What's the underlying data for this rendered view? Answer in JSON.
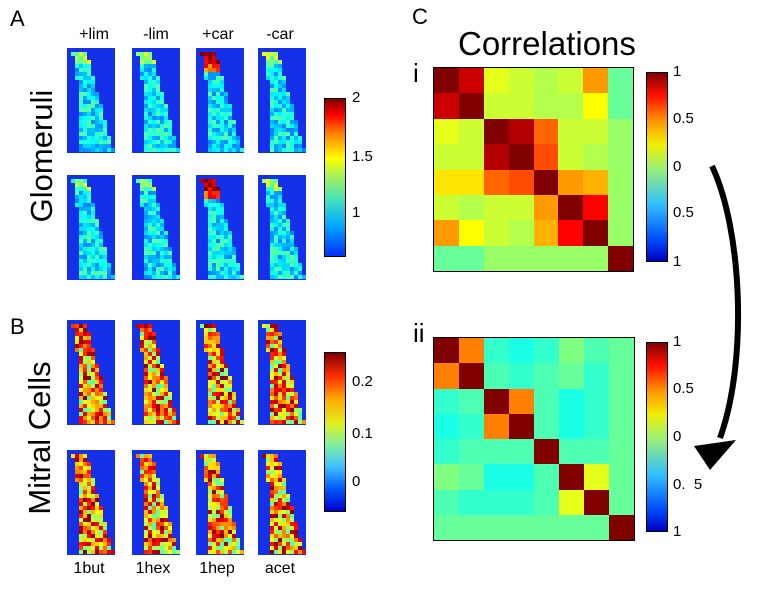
{
  "panels": {
    "A": {
      "letter": "A",
      "row_label": "Glomeruli",
      "columns": [
        "+lim",
        "-lim",
        "+car",
        "-car"
      ],
      "colorbar_ticks": [
        "2",
        "1.5",
        "1"
      ]
    },
    "B": {
      "letter": "B",
      "row_label": "Mitral Cells",
      "columns": [
        "1but",
        "1hex",
        "1hep",
        "acet"
      ],
      "colorbar_ticks": [
        "0.2",
        "0.1",
        "0"
      ]
    },
    "C": {
      "letter": "C",
      "title": "Correlations",
      "sub_i": "i",
      "sub_ii": "ii",
      "colorbar_i_ticks": [
        "1",
        "0.5",
        "0",
        "0.5",
        "1"
      ],
      "colorbar_ii_ticks": [
        "1",
        "0.5",
        "0",
        "0.  5",
        "1"
      ]
    }
  },
  "colors": {
    "map_background": "#1430e8",
    "arrow": "#000000"
  },
  "chart_data": [
    {
      "type": "heatmap",
      "title": "",
      "label": "i",
      "rows": 8,
      "cols": 8,
      "zlim": [
        -1,
        1
      ],
      "values": [
        [
          1.0,
          0.85,
          0.2,
          0.15,
          0.1,
          0.15,
          0.45,
          -0.05
        ],
        [
          0.85,
          1.0,
          0.15,
          0.15,
          0.1,
          0.1,
          0.25,
          -0.05
        ],
        [
          0.2,
          0.15,
          1.0,
          0.9,
          0.55,
          0.15,
          0.15,
          0.05
        ],
        [
          0.15,
          0.15,
          0.9,
          1.0,
          0.6,
          0.15,
          0.1,
          0.05
        ],
        [
          0.3,
          0.3,
          0.55,
          0.6,
          1.0,
          0.45,
          0.4,
          0.05
        ],
        [
          0.15,
          0.1,
          0.15,
          0.15,
          0.45,
          1.0,
          0.75,
          0.05
        ],
        [
          0.45,
          0.25,
          0.15,
          0.1,
          0.4,
          0.75,
          1.0,
          0.05
        ],
        [
          -0.05,
          -0.05,
          0.05,
          0.05,
          0.05,
          0.05,
          0.05,
          1.0
        ]
      ]
    },
    {
      "type": "heatmap",
      "title": "",
      "label": "ii",
      "rows": 8,
      "cols": 8,
      "zlim": [
        -1,
        1
      ],
      "values": [
        [
          1.0,
          0.5,
          -0.15,
          -0.2,
          -0.15,
          0.0,
          -0.1,
          -0.05
        ],
        [
          0.5,
          1.0,
          -0.1,
          -0.15,
          -0.1,
          -0.05,
          -0.15,
          -0.05
        ],
        [
          -0.15,
          -0.1,
          1.0,
          0.5,
          -0.1,
          -0.2,
          -0.15,
          -0.05
        ],
        [
          -0.2,
          -0.15,
          0.5,
          1.0,
          -0.1,
          -0.2,
          -0.15,
          -0.05
        ],
        [
          -0.15,
          -0.1,
          -0.1,
          -0.1,
          1.0,
          -0.1,
          -0.1,
          -0.05
        ],
        [
          0.0,
          -0.05,
          -0.2,
          -0.2,
          -0.1,
          1.0,
          0.2,
          -0.05
        ],
        [
          -0.1,
          -0.15,
          -0.15,
          -0.15,
          -0.1,
          0.2,
          1.0,
          -0.05
        ],
        [
          -0.05,
          -0.05,
          -0.05,
          -0.05,
          -0.05,
          -0.05,
          -0.05,
          1.0
        ]
      ]
    }
  ]
}
